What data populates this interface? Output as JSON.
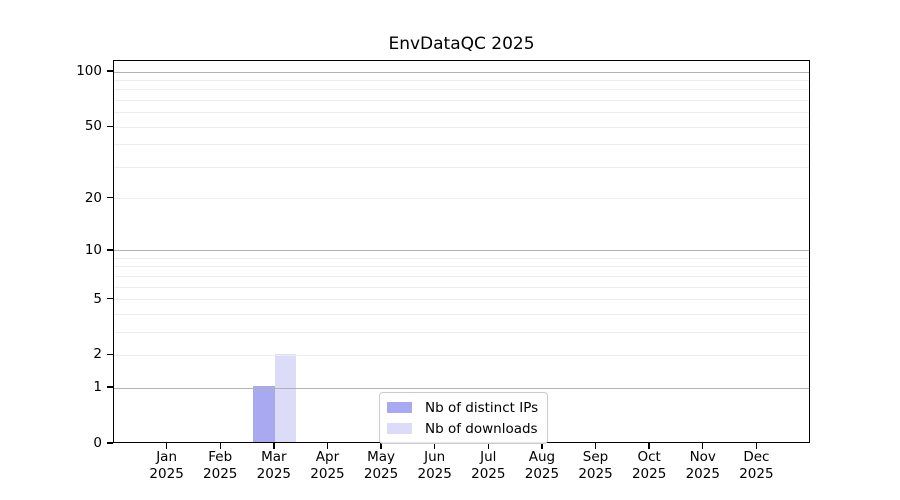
{
  "colors": {
    "distinct_ips": "#a9a9f2",
    "downloads": "#dcdcf8",
    "grid_major": "#b2b2b2",
    "grid_minor": "#ededed",
    "axis": "#000000",
    "legend_border": "#cccccc"
  },
  "legend": {
    "items": [
      {
        "label": "Nb of distinct IPs",
        "color_key": "distinct_ips"
      },
      {
        "label": "Nb of downloads",
        "color_key": "downloads"
      }
    ]
  },
  "chart_data": {
    "type": "bar",
    "title": "EnvDataQC 2025",
    "categories": [
      "Jan 2025",
      "Feb 2025",
      "Mar 2025",
      "Apr 2025",
      "May 2025",
      "Jun 2025",
      "Jul 2025",
      "Aug 2025",
      "Sep 2025",
      "Oct 2025",
      "Nov 2025",
      "Dec 2025"
    ],
    "category_month_line": [
      "Jan",
      "Feb",
      "Mar",
      "Apr",
      "May",
      "Jun",
      "Jul",
      "Aug",
      "Sep",
      "Oct",
      "Nov",
      "Dec"
    ],
    "category_year_line": "2025",
    "series": [
      {
        "name": "Nb of distinct IPs",
        "color_key": "distinct_ips",
        "values": [
          0,
          0,
          1,
          0,
          0,
          0,
          0,
          0,
          0,
          0,
          0,
          0
        ]
      },
      {
        "name": "Nb of downloads",
        "color_key": "downloads",
        "values": [
          0,
          0,
          2,
          0,
          0,
          0,
          0,
          0,
          0,
          0,
          0,
          0
        ]
      }
    ],
    "yscale": "log1p",
    "ylim": [
      0,
      115
    ],
    "ytick_values": [
      0,
      1,
      2,
      5,
      10,
      20,
      50,
      100
    ],
    "ytick_labels": [
      "0",
      "1",
      "2",
      "5",
      "10",
      "20",
      "50",
      "100"
    ],
    "grid_major_values": [
      1,
      10,
      100
    ],
    "grid_minor_values": [
      2,
      3,
      4,
      5,
      6,
      7,
      8,
      9,
      20,
      30,
      40,
      50,
      60,
      70,
      80,
      90
    ],
    "grid": true,
    "legend_position": "lower center",
    "xlabel": "",
    "ylabel": ""
  }
}
